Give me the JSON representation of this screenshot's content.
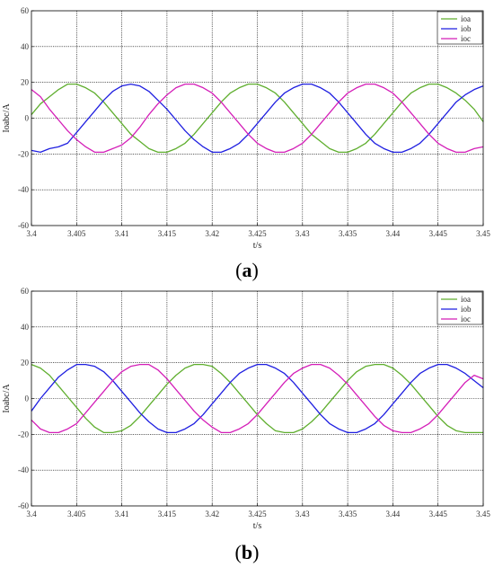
{
  "panels": [
    {
      "caption_open": "(",
      "caption_letter": "a",
      "caption_close": ")",
      "chart_data": {
        "type": "line",
        "title": "",
        "xlabel": "t/s",
        "ylabel": "Ioabc/A",
        "xlim": [
          3.4,
          3.45
        ],
        "ylim": [
          -60,
          60
        ],
        "xticks": [
          3.4,
          3.405,
          3.41,
          3.415,
          3.42,
          3.425,
          3.43,
          3.435,
          3.44,
          3.445,
          3.45
        ],
        "xtick_labels": [
          "3.4",
          "3.405",
          "3.41",
          "3.415",
          "3.42",
          "3.425",
          "3.43",
          "3.435",
          "3.44",
          "3.445",
          "3.45"
        ],
        "yticks": [
          -60,
          -40,
          -20,
          0,
          20,
          40,
          60
        ],
        "ytick_labels": [
          "-60",
          "-40",
          "-20",
          "0",
          "20",
          "40",
          "60"
        ],
        "grid": true,
        "legend": "top-right",
        "series": [
          {
            "name": "ioa",
            "color": "#5fae2e",
            "x": [
              3.4,
              3.401,
              3.402,
              3.403,
              3.404,
              3.405,
              3.406,
              3.407,
              3.408,
              3.409,
              3.41,
              3.411,
              3.412,
              3.413,
              3.414,
              3.415,
              3.416,
              3.417,
              3.418,
              3.419,
              3.42,
              3.421,
              3.422,
              3.423,
              3.424,
              3.425,
              3.426,
              3.427,
              3.428,
              3.429,
              3.43,
              3.431,
              3.432,
              3.433,
              3.434,
              3.435,
              3.436,
              3.437,
              3.438,
              3.439,
              3.44,
              3.441,
              3.442,
              3.443,
              3.444,
              3.445,
              3.446,
              3.447,
              3.448,
              3.449,
              3.45
            ],
            "y": [
              2,
              8,
              12,
              16,
              19,
              19,
              17,
              14,
              9,
              3,
              -3,
              -9,
              -13,
              -17,
              -19,
              -19,
              -17,
              -14,
              -9,
              -3,
              3,
              9,
              14,
              17,
              19,
              19,
              17,
              14,
              9,
              3,
              -3,
              -9,
              -13,
              -17,
              -19,
              -19,
              -17,
              -14,
              -9,
              -3,
              3,
              9,
              14,
              17,
              19,
              19,
              17,
              14,
              10,
              5,
              -2
            ]
          },
          {
            "name": "iob",
            "color": "#1f1fe0",
            "x": [
              3.4,
              3.401,
              3.402,
              3.403,
              3.404,
              3.405,
              3.406,
              3.407,
              3.408,
              3.409,
              3.41,
              3.411,
              3.412,
              3.413,
              3.414,
              3.415,
              3.416,
              3.417,
              3.418,
              3.419,
              3.42,
              3.421,
              3.422,
              3.423,
              3.424,
              3.425,
              3.426,
              3.427,
              3.428,
              3.429,
              3.43,
              3.431,
              3.432,
              3.433,
              3.434,
              3.435,
              3.436,
              3.437,
              3.438,
              3.439,
              3.44,
              3.441,
              3.442,
              3.443,
              3.444,
              3.445,
              3.446,
              3.447,
              3.448,
              3.449,
              3.45
            ],
            "y": [
              -18,
              -19,
              -17,
              -16,
              -14,
              -8,
              -2,
              4,
              10,
              15,
              18,
              19,
              18,
              15,
              10,
              5,
              -1,
              -7,
              -12,
              -16,
              -19,
              -19,
              -17,
              -14,
              -9,
              -3,
              3,
              9,
              14,
              17,
              19,
              19,
              17,
              14,
              9,
              3,
              -3,
              -9,
              -14,
              -17,
              -19,
              -19,
              -17,
              -14,
              -9,
              -3,
              3,
              9,
              13,
              16,
              18
            ]
          },
          {
            "name": "ioc",
            "color": "#d41fb8",
            "x": [
              3.4,
              3.401,
              3.402,
              3.403,
              3.404,
              3.405,
              3.406,
              3.407,
              3.408,
              3.409,
              3.41,
              3.411,
              3.412,
              3.413,
              3.414,
              3.415,
              3.416,
              3.417,
              3.418,
              3.419,
              3.42,
              3.421,
              3.422,
              3.423,
              3.424,
              3.425,
              3.426,
              3.427,
              3.428,
              3.429,
              3.43,
              3.431,
              3.432,
              3.433,
              3.434,
              3.435,
              3.436,
              3.437,
              3.438,
              3.439,
              3.44,
              3.441,
              3.442,
              3.443,
              3.444,
              3.445,
              3.446,
              3.447,
              3.448,
              3.449,
              3.45
            ],
            "y": [
              16,
              12,
              5,
              -1,
              -7,
              -12,
              -16,
              -19,
              -19,
              -17,
              -15,
              -11,
              -5,
              2,
              8,
              13,
              17,
              19,
              19,
              17,
              14,
              9,
              3,
              -3,
              -9,
              -14,
              -17,
              -19,
              -19,
              -17,
              -14,
              -9,
              -3,
              3,
              9,
              14,
              17,
              19,
              19,
              17,
              14,
              9,
              3,
              -3,
              -9,
              -14,
              -17,
              -19,
              -19,
              -17,
              -16
            ]
          }
        ]
      }
    },
    {
      "caption_open": "(",
      "caption_letter": "b",
      "caption_close": ")",
      "chart_data": {
        "type": "line",
        "title": "",
        "xlabel": "t/s",
        "ylabel": "Ioabc/A",
        "xlim": [
          3.4,
          3.45
        ],
        "ylim": [
          -60,
          60
        ],
        "xticks": [
          3.4,
          3.405,
          3.41,
          3.415,
          3.42,
          3.425,
          3.43,
          3.435,
          3.44,
          3.445,
          3.45
        ],
        "xtick_labels": [
          "3.4",
          "3.405",
          "3.41",
          "3.415",
          "3.42",
          "3.425",
          "3.43",
          "3.435",
          "3.44",
          "3.445",
          "3.45"
        ],
        "yticks": [
          -60,
          -40,
          -20,
          0,
          20,
          40,
          60
        ],
        "ytick_labels": [
          "-60",
          "-40",
          "-20",
          "0",
          "20",
          "40",
          "60"
        ],
        "grid": true,
        "legend": "top-right",
        "series": [
          {
            "name": "ioa",
            "color": "#5fae2e",
            "x": [
              3.4,
              3.401,
              3.402,
              3.403,
              3.404,
              3.405,
              3.406,
              3.407,
              3.408,
              3.409,
              3.41,
              3.411,
              3.412,
              3.413,
              3.414,
              3.415,
              3.416,
              3.417,
              3.418,
              3.419,
              3.42,
              3.421,
              3.422,
              3.423,
              3.424,
              3.425,
              3.426,
              3.427,
              3.428,
              3.429,
              3.43,
              3.431,
              3.432,
              3.433,
              3.434,
              3.435,
              3.436,
              3.437,
              3.438,
              3.439,
              3.44,
              3.441,
              3.442,
              3.443,
              3.444,
              3.445,
              3.446,
              3.447,
              3.448,
              3.449,
              3.45
            ],
            "y": [
              19,
              17,
              13,
              7,
              1,
              -5,
              -11,
              -16,
              -19,
              -19,
              -18,
              -15,
              -10,
              -4,
              2,
              8,
              13,
              17,
              19,
              19,
              18,
              14,
              9,
              3,
              -3,
              -9,
              -14,
              -18,
              -19,
              -19,
              -17,
              -13,
              -8,
              -2,
              4,
              10,
              15,
              18,
              19,
              19,
              17,
              13,
              8,
              2,
              -4,
              -10,
              -15,
              -18,
              -19,
              -19,
              -19
            ]
          },
          {
            "name": "iob",
            "color": "#1f1fe0",
            "x": [
              3.4,
              3.401,
              3.402,
              3.403,
              3.404,
              3.405,
              3.406,
              3.407,
              3.408,
              3.409,
              3.41,
              3.411,
              3.412,
              3.413,
              3.414,
              3.415,
              3.416,
              3.417,
              3.418,
              3.419,
              3.42,
              3.421,
              3.422,
              3.423,
              3.424,
              3.425,
              3.426,
              3.427,
              3.428,
              3.429,
              3.43,
              3.431,
              3.432,
              3.433,
              3.434,
              3.435,
              3.436,
              3.437,
              3.438,
              3.439,
              3.44,
              3.441,
              3.442,
              3.443,
              3.444,
              3.445,
              3.446,
              3.447,
              3.448,
              3.449,
              3.45
            ],
            "y": [
              -7,
              0,
              6,
              12,
              16,
              19,
              19,
              18,
              15,
              10,
              4,
              -2,
              -8,
              -13,
              -17,
              -19,
              -19,
              -17,
              -14,
              -9,
              -3,
              3,
              9,
              14,
              17,
              19,
              19,
              17,
              14,
              9,
              3,
              -3,
              -9,
              -14,
              -17,
              -19,
              -19,
              -17,
              -14,
              -9,
              -3,
              3,
              9,
              14,
              17,
              19,
              19,
              17,
              14,
              10,
              6
            ]
          },
          {
            "name": "ioc",
            "color": "#d41fb8",
            "x": [
              3.4,
              3.401,
              3.402,
              3.403,
              3.404,
              3.405,
              3.406,
              3.407,
              3.408,
              3.409,
              3.41,
              3.411,
              3.412,
              3.413,
              3.414,
              3.415,
              3.416,
              3.417,
              3.418,
              3.419,
              3.42,
              3.421,
              3.422,
              3.423,
              3.424,
              3.425,
              3.426,
              3.427,
              3.428,
              3.429,
              3.43,
              3.431,
              3.432,
              3.433,
              3.434,
              3.435,
              3.436,
              3.437,
              3.438,
              3.439,
              3.44,
              3.441,
              3.442,
              3.443,
              3.444,
              3.445,
              3.446,
              3.447,
              3.448,
              3.449,
              3.45
            ],
            "y": [
              -12,
              -17,
              -19,
              -19,
              -17,
              -14,
              -8,
              -2,
              4,
              10,
              15,
              18,
              19,
              19,
              16,
              11,
              5,
              -1,
              -7,
              -12,
              -16,
              -19,
              -19,
              -17,
              -14,
              -9,
              -3,
              3,
              9,
              14,
              17,
              19,
              19,
              17,
              13,
              8,
              2,
              -4,
              -10,
              -15,
              -18,
              -19,
              -19,
              -17,
              -14,
              -9,
              -3,
              3,
              9,
              13,
              11
            ]
          }
        ]
      }
    }
  ]
}
